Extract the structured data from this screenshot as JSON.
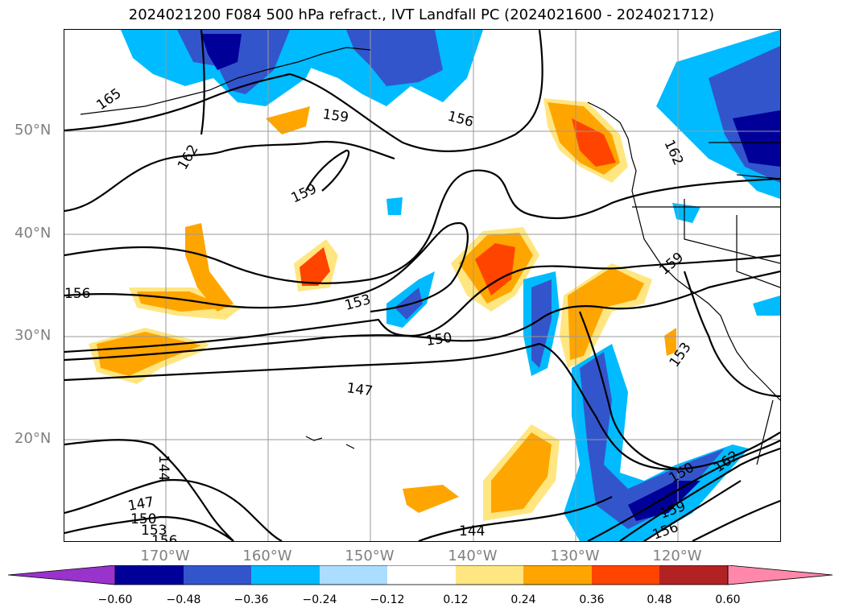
{
  "title": "2024021200 F084 500 hPa refract., IVT Landfall PC (2024021600 - 2024021712)",
  "lat_labels": [
    "50°N",
    "40°N",
    "30°N",
    "20°N"
  ],
  "lon_labels": [
    "170°W",
    "160°W",
    "150°W",
    "140°W",
    "130°W",
    "120°W"
  ],
  "contour_labels": [
    "165",
    "159",
    "156",
    "162",
    "159",
    "162",
    "156",
    "153",
    "150",
    "147",
    "144",
    "147",
    "150",
    "153",
    "156",
    "144",
    "159",
    "153",
    "159",
    "156",
    "150",
    "162"
  ],
  "colorbar": {
    "ticks": [
      "−0.60",
      "−0.48",
      "−0.36",
      "−0.24",
      "−0.12",
      "0.12",
      "0.24",
      "0.36",
      "0.48",
      "0.60"
    ],
    "colors": [
      "#9933cc",
      "#000099",
      "#3355cc",
      "#00bbff",
      "#aaddff",
      "#ffffff",
      "#ffe680",
      "#ffa500",
      "#ff4400",
      "#b22222",
      "#ff88aa"
    ]
  }
}
